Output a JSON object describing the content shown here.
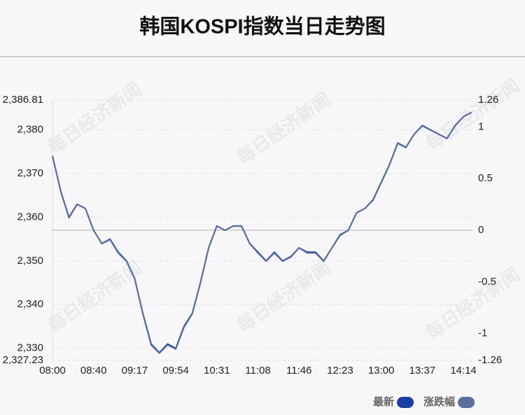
{
  "chart_data": {
    "type": "line",
    "title": "韩国KOSPI指数当日走势图",
    "watermark": "每日经济新闻",
    "x": [
      "08:00",
      "08:08",
      "08:16",
      "08:24",
      "08:32",
      "08:40",
      "08:47",
      "08:55",
      "09:02",
      "09:10",
      "09:17",
      "09:24",
      "09:32",
      "09:39",
      "09:47",
      "09:54",
      "10:01",
      "10:09",
      "10:16",
      "10:24",
      "10:31",
      "10:38",
      "10:46",
      "10:53",
      "11:01",
      "11:08",
      "11:16",
      "11:23",
      "11:31",
      "11:38",
      "11:46",
      "11:53",
      "12:01",
      "12:08",
      "12:16",
      "12:23",
      "12:30",
      "12:38",
      "12:45",
      "12:53",
      "13:00",
      "13:07",
      "13:15",
      "13:22",
      "13:30",
      "13:37",
      "13:44",
      "13:52",
      "13:59",
      "14:07",
      "14:14",
      "14:21"
    ],
    "xticks": [
      "08:00",
      "08:40",
      "09:17",
      "09:54",
      "10:31",
      "11:08",
      "11:46",
      "12:23",
      "13:00",
      "13:37",
      "14:14"
    ],
    "series": [
      {
        "name": "最新",
        "color": "#1a3fa0",
        "values": [
          2374,
          2366,
          2360,
          2363,
          2362,
          2357,
          2354,
          2355,
          2352,
          2350,
          2346,
          2338,
          2331,
          2329,
          2331,
          2330,
          2335,
          2338,
          2345,
          2353,
          2358,
          2357,
          2358,
          2358,
          2354,
          2352,
          2350,
          2352,
          2350,
          2351,
          2353,
          2352,
          2352,
          2350,
          2353,
          2356,
          2357,
          2361,
          2362,
          2364,
          2368,
          2372,
          2377,
          2376,
          2379,
          2381,
          2380,
          2379,
          2378,
          2381,
          2383,
          2384
        ]
      },
      {
        "name": "涨跌幅",
        "color": "#5b6f9c",
        "axis": "y2",
        "values": [
          0.72,
          0.38,
          0.12,
          0.25,
          0.21,
          0,
          -0.13,
          -0.09,
          -0.22,
          -0.3,
          -0.47,
          -0.81,
          -1.11,
          -1.19,
          -1.11,
          -1.15,
          -0.94,
          -0.81,
          -0.51,
          -0.17,
          0.04,
          0,
          0.04,
          0.04,
          -0.13,
          -0.22,
          -0.3,
          -0.22,
          -0.3,
          -0.26,
          -0.17,
          -0.22,
          -0.22,
          -0.3,
          -0.17,
          -0.05,
          0,
          0.17,
          0.21,
          0.29,
          0.46,
          0.63,
          0.84,
          0.8,
          0.93,
          1.01,
          0.97,
          0.93,
          0.89,
          1.01,
          1.1,
          1.14
        ]
      }
    ],
    "ylim": [
      2327.23,
      2386.81
    ],
    "yticks": [
      {
        "value": 2327.23,
        "label": "2,327.23"
      },
      {
        "value": 2330,
        "label": "2,330"
      },
      {
        "value": 2340,
        "label": "2,340"
      },
      {
        "value": 2350,
        "label": "2,350"
      },
      {
        "value": 2360,
        "label": "2,360"
      },
      {
        "value": 2370,
        "label": "2,370"
      },
      {
        "value": 2380,
        "label": "2,380"
      },
      {
        "value": 2386.81,
        "label": "2,386.81"
      }
    ],
    "y2lim": [
      -1.26,
      1.26
    ],
    "y2ticks": [
      -1.26,
      -1,
      -0.5,
      0,
      0.5,
      1,
      1.26
    ],
    "grid": true,
    "legend": "bottom-right"
  }
}
